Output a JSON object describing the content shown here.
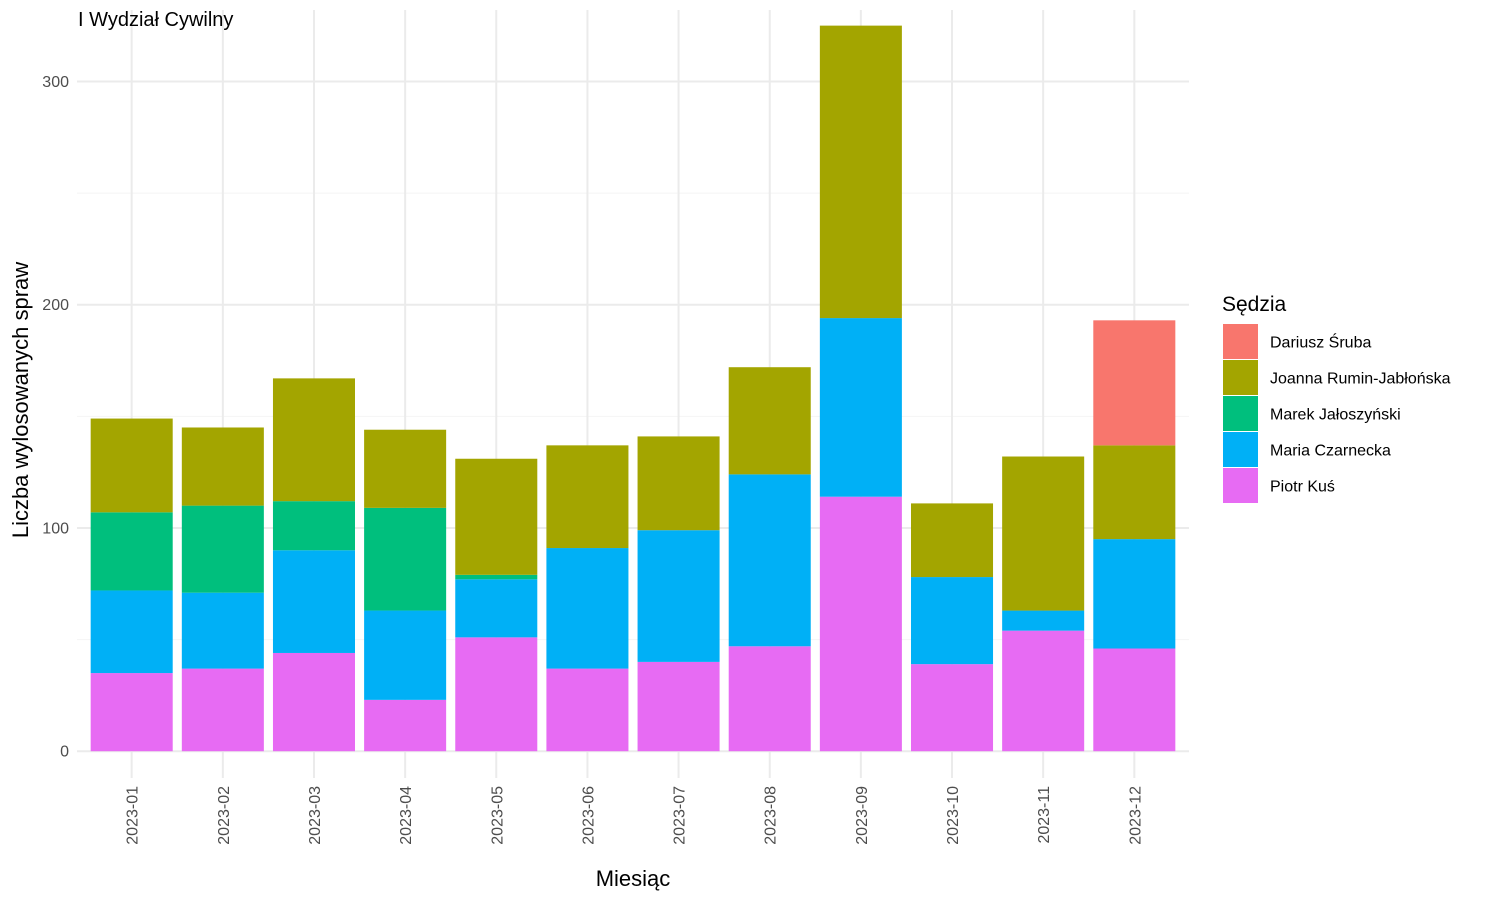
{
  "chart_data": {
    "type": "bar",
    "stacked": true,
    "title": "I Wydział Cywilny",
    "xlabel": "Miesiąc",
    "ylabel": "Liczba wylosowanych spraw",
    "ylim": [
      -12,
      332
    ],
    "yticks": [
      0,
      100,
      200,
      300
    ],
    "grid": true,
    "legend": {
      "title": "Sędzia",
      "placement": "right"
    },
    "categories": [
      "2023-01",
      "2023-02",
      "2023-03",
      "2023-04",
      "2023-05",
      "2023-06",
      "2023-07",
      "2023-08",
      "2023-09",
      "2023-10",
      "2023-11",
      "2023-12"
    ],
    "series": [
      {
        "name": "Dariusz Śruba",
        "color": "#F8766D",
        "values": [
          0,
          0,
          0,
          0,
          0,
          0,
          0,
          0,
          0,
          0,
          0,
          56
        ]
      },
      {
        "name": "Joanna Rumin-Jabłońska",
        "color": "#A3A500",
        "values": [
          42,
          35,
          55,
          35,
          52,
          46,
          42,
          48,
          131,
          33,
          69,
          42
        ]
      },
      {
        "name": "Marek Jałoszyński",
        "color": "#00BF7D",
        "values": [
          35,
          39,
          22,
          46,
          2,
          0,
          0,
          0,
          0,
          0,
          0,
          0
        ]
      },
      {
        "name": "Maria Czarnecka",
        "color": "#00B0F6",
        "values": [
          37,
          34,
          46,
          40,
          26,
          54,
          59,
          77,
          80,
          39,
          9,
          49
        ]
      },
      {
        "name": "Piotr Kuś",
        "color": "#E76BF3",
        "values": [
          35,
          37,
          44,
          23,
          51,
          37,
          40,
          47,
          114,
          39,
          54,
          46
        ]
      }
    ]
  }
}
